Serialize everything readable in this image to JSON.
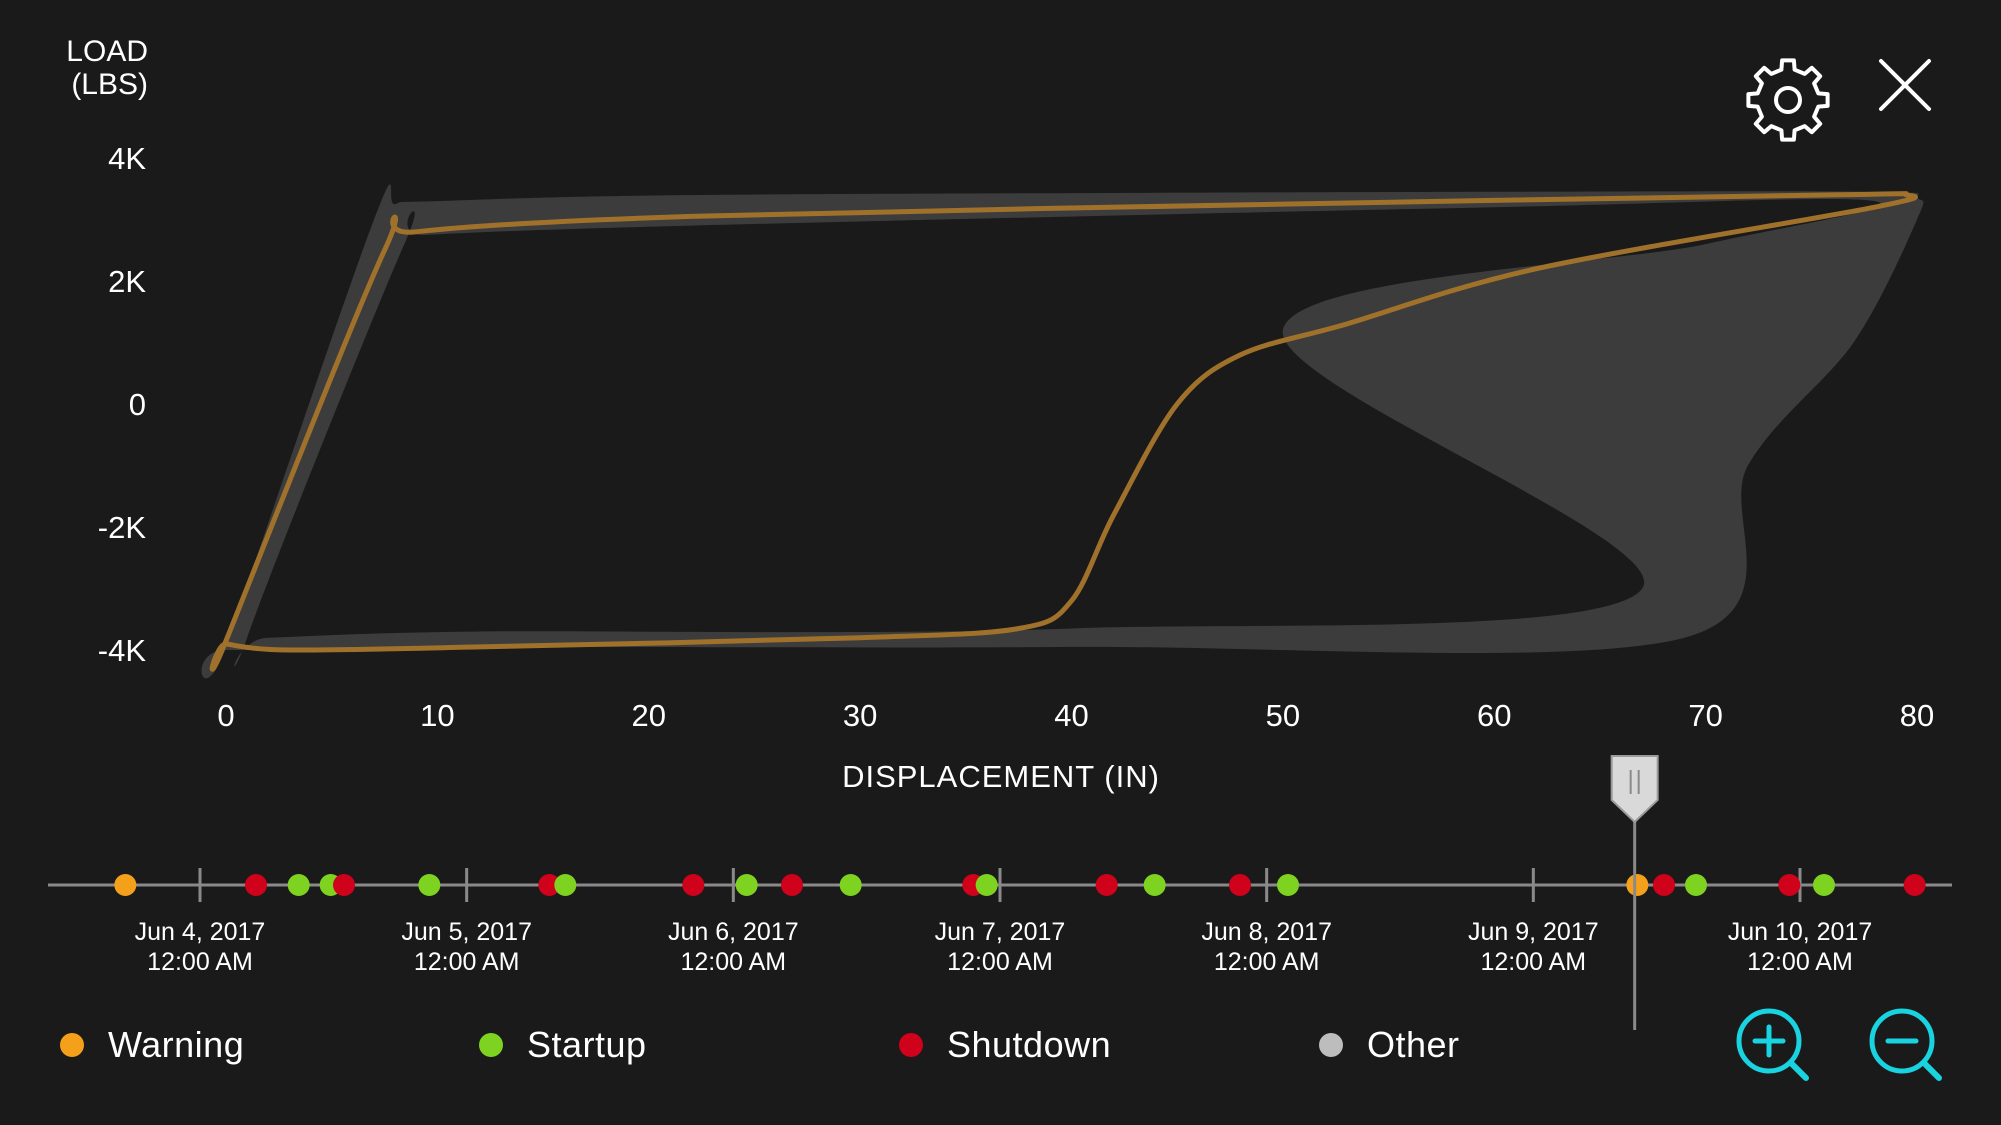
{
  "colors": {
    "background": "#1a1a1a",
    "envelope": "#3c3c3c",
    "curve": "#a0712a",
    "text": "#ffffff",
    "timeline": "#8a8a8a",
    "accent": "#19d3e0",
    "warning": "#f5a01a",
    "startup": "#7ed321",
    "shutdown": "#d0021b",
    "other": "#bdbdbd"
  },
  "icons": {
    "settings": "gear-icon",
    "close": "close-icon",
    "zoom_in": "zoom-in-icon",
    "zoom_out": "zoom-out-icon",
    "scrubber": "pause-handle-icon"
  },
  "chart_data": {
    "type": "line",
    "ylabel": "LOAD\n(LBS)",
    "xlabel": "DISPLACEMENT (IN)",
    "xlim": [
      0,
      80
    ],
    "ylim": [
      -4000,
      4000
    ],
    "x_ticks": [
      0,
      10,
      20,
      30,
      40,
      50,
      60,
      70,
      80
    ],
    "x_tick_labels": [
      "0",
      "10",
      "20",
      "30",
      "40",
      "50",
      "60",
      "70",
      "80"
    ],
    "y_ticks": [
      4000,
      2000,
      0,
      -2000,
      -4000
    ],
    "y_tick_labels": [
      "4K",
      "2K",
      "0",
      "-2K",
      "-4K"
    ],
    "grid": false,
    "series": [
      {
        "role": "envelope",
        "outer": [
          [
            0,
            -3950
          ],
          [
            7,
            3000
          ],
          [
            8,
            3250
          ],
          [
            10,
            3300
          ],
          [
            23,
            3400
          ],
          [
            60,
            3450
          ],
          [
            78,
            3450
          ],
          [
            80,
            3350
          ],
          [
            80,
            3000
          ],
          [
            77,
            1000
          ],
          [
            72,
            -1000
          ],
          [
            69,
            -3800
          ],
          [
            40,
            -3950
          ],
          [
            12,
            -3950
          ],
          [
            0,
            -4000
          ]
        ],
        "inner": [
          [
            1,
            -3800
          ],
          [
            8.5,
            2650
          ],
          [
            9.5,
            2750
          ],
          [
            22,
            2900
          ],
          [
            60,
            3200
          ],
          [
            78,
            3300
          ],
          [
            70,
            2600
          ],
          [
            50,
            1200
          ],
          [
            67,
            -3000
          ],
          [
            40,
            -3650
          ],
          [
            12,
            -3700
          ],
          [
            2,
            -3800
          ]
        ]
      },
      {
        "role": "card",
        "points": [
          [
            0,
            -3850
          ],
          [
            7.5,
            2500
          ],
          [
            9,
            2800
          ],
          [
            22,
            3050
          ],
          [
            50,
            3250
          ],
          [
            76,
            3400
          ],
          [
            79.5,
            3400
          ],
          [
            78,
            3200
          ],
          [
            62,
            2200
          ],
          [
            53,
            1300
          ],
          [
            48,
            800
          ],
          [
            45,
            0
          ],
          [
            42,
            -1800
          ],
          [
            40,
            -3200
          ],
          [
            37.5,
            -3650
          ],
          [
            30,
            -3800
          ],
          [
            12,
            -3950
          ],
          [
            3,
            -4000
          ],
          [
            0,
            -3900
          ]
        ]
      }
    ]
  },
  "timeline": {
    "dates": [
      {
        "date": "Jun 4, 2017",
        "time": "12:00 AM"
      },
      {
        "date": "Jun 5, 2017",
        "time": "12:00 AM"
      },
      {
        "date": "Jun 6, 2017",
        "time": "12:00 AM"
      },
      {
        "date": "Jun 7, 2017",
        "time": "12:00 AM"
      },
      {
        "date": "Jun 8, 2017",
        "time": "12:00 AM"
      },
      {
        "date": "Jun 9, 2017",
        "time": "12:00 AM"
      },
      {
        "date": "Jun 10, 2017",
        "time": "12:00 AM"
      }
    ],
    "range_days": [
      -0.57,
      6.57
    ],
    "playhead_day": 5.38,
    "events": [
      {
        "type": "warning",
        "day": -0.28
      },
      {
        "type": "shutdown",
        "day": 0.21
      },
      {
        "type": "startup",
        "day": 0.37
      },
      {
        "type": "startup",
        "day": 0.49
      },
      {
        "type": "shutdown",
        "day": 0.54
      },
      {
        "type": "startup",
        "day": 0.86
      },
      {
        "type": "shutdown",
        "day": 1.31
      },
      {
        "type": "startup",
        "day": 1.37
      },
      {
        "type": "shutdown",
        "day": 1.85
      },
      {
        "type": "startup",
        "day": 2.05
      },
      {
        "type": "shutdown",
        "day": 2.22
      },
      {
        "type": "startup",
        "day": 2.44
      },
      {
        "type": "shutdown",
        "day": 2.9
      },
      {
        "type": "startup",
        "day": 2.95
      },
      {
        "type": "shutdown",
        "day": 3.4
      },
      {
        "type": "startup",
        "day": 3.58
      },
      {
        "type": "shutdown",
        "day": 3.9
      },
      {
        "type": "startup",
        "day": 4.08
      },
      {
        "type": "warning",
        "day": 5.39
      },
      {
        "type": "shutdown",
        "day": 5.49
      },
      {
        "type": "startup",
        "day": 5.61
      },
      {
        "type": "shutdown",
        "day": 5.96
      },
      {
        "type": "startup",
        "day": 6.09
      },
      {
        "type": "shutdown",
        "day": 6.43
      }
    ]
  },
  "legend": [
    {
      "key": "warning",
      "label": "Warning"
    },
    {
      "key": "startup",
      "label": "Startup"
    },
    {
      "key": "shutdown",
      "label": "Shutdown"
    },
    {
      "key": "other",
      "label": "Other"
    }
  ]
}
